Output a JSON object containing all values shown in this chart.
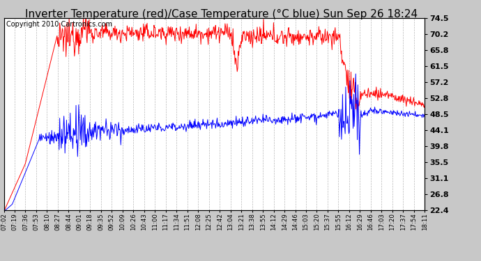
{
  "title": "Inverter Temperature (red)/Case Temperature (°C blue) Sun Sep 26 18:24",
  "copyright": "Copyright 2010 Cartronics.com",
  "ylabel_right_ticks": [
    22.4,
    26.8,
    31.1,
    35.5,
    39.8,
    44.1,
    48.5,
    52.8,
    57.2,
    61.5,
    65.8,
    70.2,
    74.5
  ],
  "x_tick_labels": [
    "07:02",
    "07:19",
    "07:36",
    "07:53",
    "08:10",
    "08:27",
    "08:44",
    "09:01",
    "09:18",
    "09:35",
    "09:52",
    "10:09",
    "10:26",
    "10:43",
    "11:00",
    "11:17",
    "11:34",
    "11:51",
    "12:08",
    "12:25",
    "12:42",
    "13:04",
    "13:21",
    "13:38",
    "13:55",
    "14:12",
    "14:29",
    "14:46",
    "15:03",
    "15:20",
    "15:37",
    "15:55",
    "16:12",
    "16:29",
    "16:46",
    "17:03",
    "17:20",
    "17:37",
    "17:54",
    "18:11"
  ],
  "ymin": 22.4,
  "ymax": 74.5,
  "background_color": "#c8c8c8",
  "plot_bg_color": "#ffffff",
  "grid_color": "#888888",
  "red_line_color": "#ff0000",
  "blue_line_color": "#0000ff",
  "title_fontsize": 11,
  "copyright_fontsize": 7
}
